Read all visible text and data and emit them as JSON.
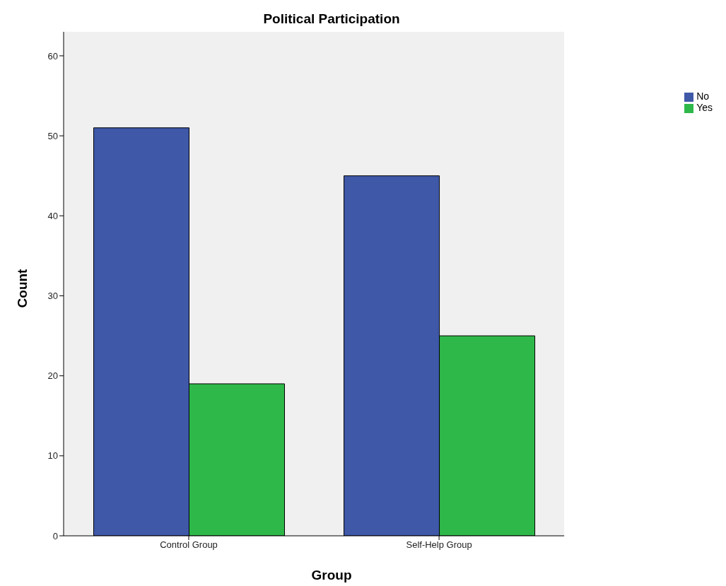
{
  "chart_data": {
    "type": "bar",
    "title": "Political Participation",
    "xlabel": "Group",
    "ylabel": "Count",
    "categories": [
      "Control Group",
      "Self-Help Group"
    ],
    "series": [
      {
        "name": "No",
        "color": "#3f58a8",
        "values": [
          51,
          45
        ]
      },
      {
        "name": "Yes",
        "color": "#2fb84a",
        "values": [
          19,
          25
        ]
      }
    ],
    "ylim": [
      0,
      63
    ],
    "yticks": [
      0,
      10,
      20,
      30,
      40,
      50,
      60
    ],
    "grid": false,
    "legend": "top right"
  }
}
